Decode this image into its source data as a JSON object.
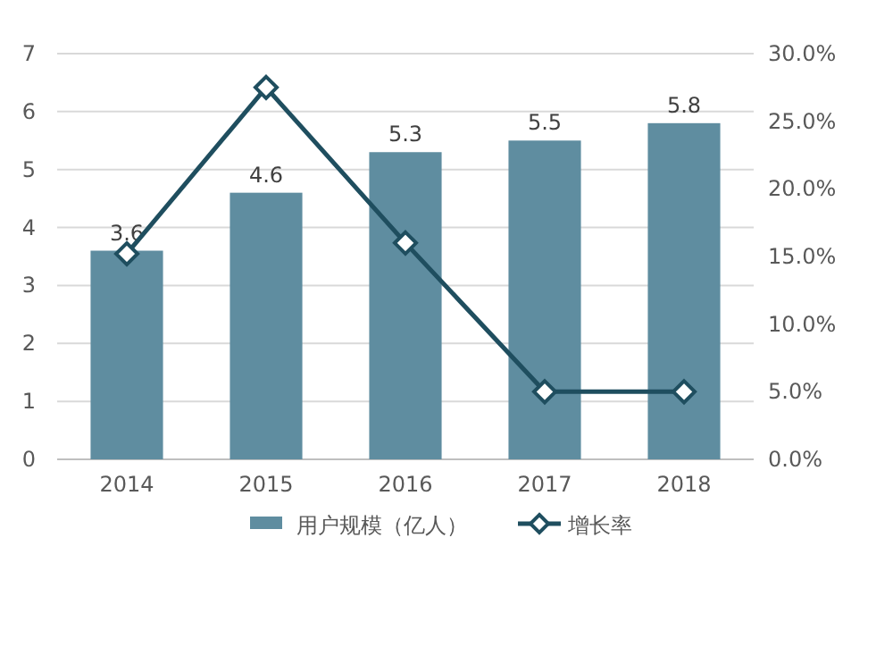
{
  "chart_data": {
    "type": "bar",
    "categories": [
      "2014",
      "2015",
      "2016",
      "2017",
      "2018"
    ],
    "series": [
      {
        "name": "用户规模（亿人）",
        "color": "#5f8da0",
        "values": [
          3.6,
          4.6,
          5.3,
          5.5,
          5.8
        ],
        "value_labels": [
          "3.6",
          "4.6",
          "5.3",
          "5.5",
          "5.8"
        ]
      },
      {
        "name": "增长率",
        "type": "line",
        "axis": "y2",
        "color": "#1f4e5f",
        "marker": "diamond",
        "values": [
          15.2,
          27.5,
          16,
          5,
          5
        ]
      }
    ],
    "ylim": [
      0,
      7
    ],
    "yticks": [
      0,
      1,
      2,
      3,
      4,
      5,
      6,
      7
    ],
    "y2lim": [
      0,
      30
    ],
    "y2ticks": [
      {
        "value": 0,
        "label": "0.0%"
      },
      {
        "value": 5,
        "label": "5.0%"
      },
      {
        "value": 10,
        "label": "10.0%"
      },
      {
        "value": 15,
        "label": "15.0%"
      },
      {
        "value": 20,
        "label": "20.0%"
      },
      {
        "value": 25,
        "label": "25.0%"
      },
      {
        "value": 30,
        "label": "30.0%"
      }
    ],
    "grid": "y",
    "legend": "bottom"
  }
}
